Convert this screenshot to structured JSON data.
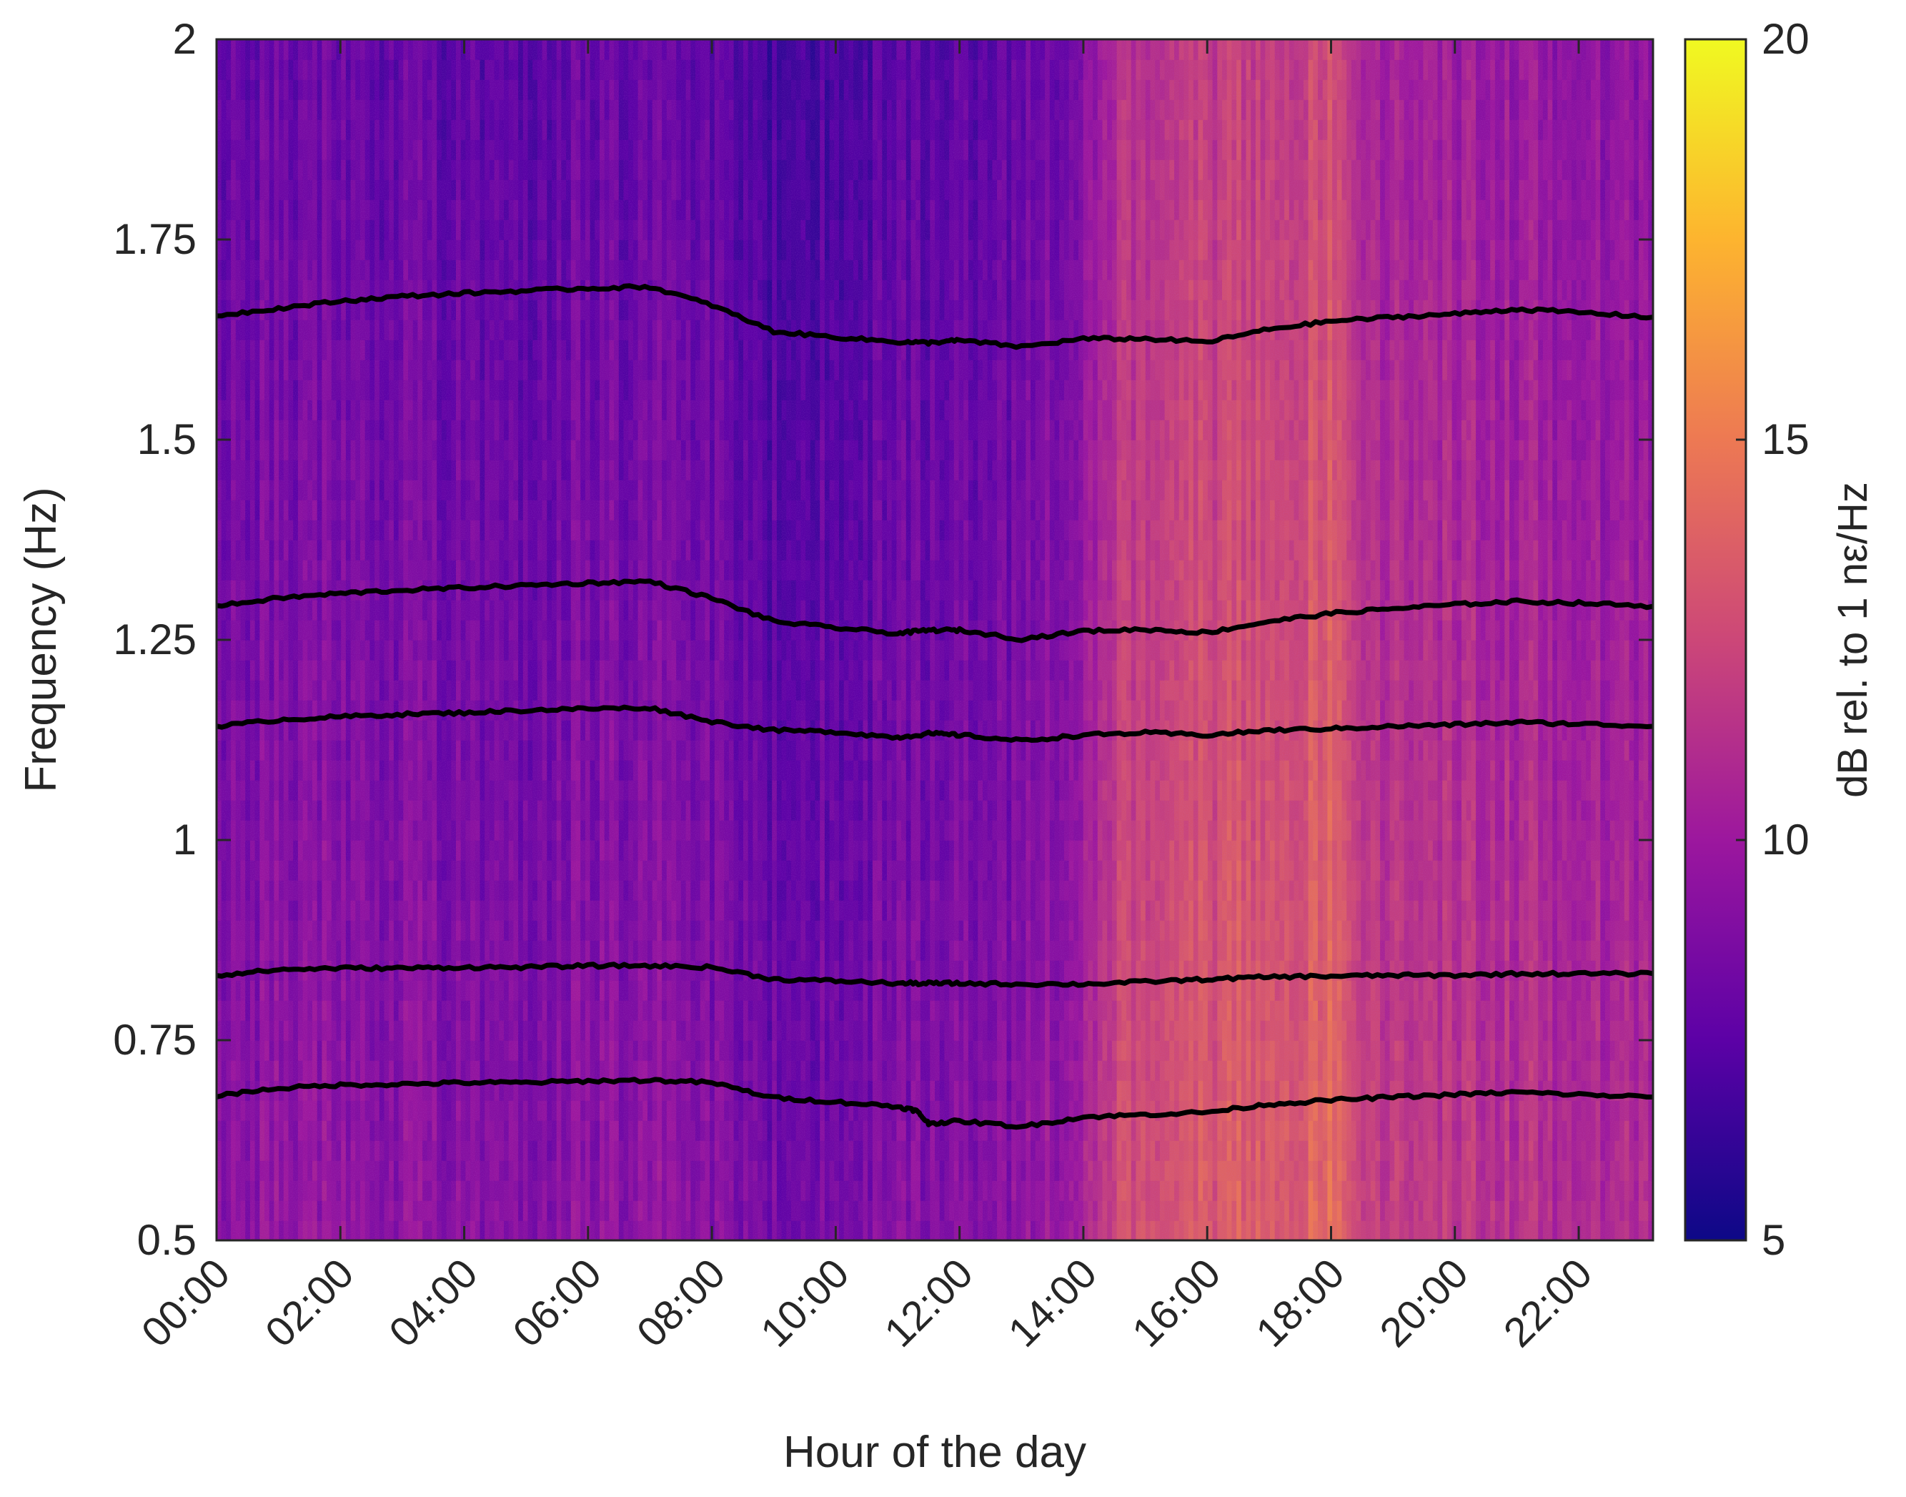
{
  "chart_data": {
    "type": "heatmap",
    "title": "",
    "xlabel": "Hour of the day",
    "ylabel": "Frequency (Hz)",
    "xlim": [
      0,
      23.2
    ],
    "ylim": [
      0.5,
      2
    ],
    "xticks": [
      {
        "value": 0,
        "label": "00:00"
      },
      {
        "value": 2,
        "label": "02:00"
      },
      {
        "value": 4,
        "label": "04:00"
      },
      {
        "value": 6,
        "label": "06:00"
      },
      {
        "value": 8,
        "label": "08:00"
      },
      {
        "value": 10,
        "label": "10:00"
      },
      {
        "value": 12,
        "label": "12:00"
      },
      {
        "value": 14,
        "label": "14:00"
      },
      {
        "value": 16,
        "label": "16:00"
      },
      {
        "value": 18,
        "label": "18:00"
      },
      {
        "value": 20,
        "label": "20:00"
      },
      {
        "value": 22,
        "label": "22:00"
      }
    ],
    "yticks": [
      {
        "value": 0.5,
        "label": "0.5"
      },
      {
        "value": 0.75,
        "label": "0.75"
      },
      {
        "value": 1,
        "label": "1"
      },
      {
        "value": 1.25,
        "label": "1.25"
      },
      {
        "value": 1.5,
        "label": "1.5"
      },
      {
        "value": 1.75,
        "label": "1.75"
      },
      {
        "value": 2,
        "label": "2"
      }
    ],
    "colorbar": {
      "label": "dB rel. to 1 nε/Hz",
      "range": [
        5,
        20
      ],
      "ticks": [
        {
          "value": 5,
          "label": "5"
        },
        {
          "value": 10,
          "label": "10"
        },
        {
          "value": 15,
          "label": "15"
        },
        {
          "value": 20,
          "label": "20"
        }
      ],
      "colormap": [
        "#0d0887",
        "#5c01a6",
        "#9c179e",
        "#cc4778",
        "#ed7953",
        "#fdb42f",
        "#f0f921"
      ]
    },
    "heatmap_level_profile": {
      "description_hours": [
        0,
        1,
        2,
        3,
        4,
        5,
        6,
        7,
        8,
        9,
        10,
        11,
        12,
        13,
        14,
        14.7,
        15,
        16,
        17,
        18,
        18.5,
        19,
        20,
        21,
        22,
        23.2
      ],
      "db_level": [
        8.2,
        8.6,
        8.4,
        8.3,
        8.1,
        8.0,
        8.3,
        8.4,
        8.0,
        7.2,
        7.4,
        7.8,
        8.0,
        8.2,
        9.4,
        11.8,
        12.0,
        12.3,
        12.6,
        13.2,
        11.3,
        10.8,
        10.6,
        10.4,
        10.0,
        9.6
      ]
    },
    "grid": false,
    "legend": "none",
    "tracked_modes": [
      {
        "x": [
          0,
          1,
          2,
          3,
          4,
          5,
          6,
          7,
          8,
          9,
          10,
          11,
          11.5,
          12,
          13,
          14,
          15,
          16,
          17,
          18,
          19,
          20,
          21,
          22,
          23.2
        ],
        "y": [
          1.655,
          1.664,
          1.673,
          1.679,
          1.683,
          1.686,
          1.689,
          1.691,
          1.668,
          1.635,
          1.628,
          1.622,
          1.621,
          1.624,
          1.616,
          1.626,
          1.626,
          1.622,
          1.638,
          1.648,
          1.653,
          1.657,
          1.663,
          1.659,
          1.653
        ]
      },
      {
        "x": [
          0,
          1,
          2,
          3,
          4,
          5,
          6,
          7,
          8,
          9,
          10,
          11,
          11.5,
          12,
          13,
          14,
          15,
          16,
          17,
          18,
          19,
          20,
          21,
          22,
          23.2
        ],
        "y": [
          1.292,
          1.302,
          1.308,
          1.312,
          1.315,
          1.318,
          1.321,
          1.323,
          1.302,
          1.273,
          1.265,
          1.258,
          1.262,
          1.262,
          1.251,
          1.261,
          1.263,
          1.259,
          1.273,
          1.283,
          1.289,
          1.294,
          1.298,
          1.296,
          1.292
        ]
      },
      {
        "x": [
          0,
          1,
          2,
          3,
          4,
          5,
          6,
          7,
          8,
          9,
          10,
          11,
          11.5,
          12,
          13,
          14,
          15,
          16,
          17,
          18,
          19,
          20,
          21,
          22,
          23.2
        ],
        "y": [
          1.142,
          1.15,
          1.154,
          1.157,
          1.159,
          1.162,
          1.164,
          1.165,
          1.148,
          1.137,
          1.135,
          1.128,
          1.133,
          1.131,
          1.124,
          1.131,
          1.134,
          1.131,
          1.137,
          1.139,
          1.142,
          1.144,
          1.147,
          1.145,
          1.142
        ]
      },
      {
        "x": [
          0,
          1,
          2,
          3,
          4,
          5,
          6,
          7,
          8,
          9,
          10,
          11,
          11.5,
          12,
          13,
          14,
          15,
          16,
          17,
          18,
          19,
          20,
          21,
          22,
          23.2
        ],
        "y": [
          0.831,
          0.838,
          0.84,
          0.84,
          0.841,
          0.841,
          0.843,
          0.843,
          0.841,
          0.826,
          0.824,
          0.821,
          0.821,
          0.821,
          0.82,
          0.82,
          0.823,
          0.826,
          0.829,
          0.83,
          0.831,
          0.831,
          0.833,
          0.833,
          0.833
        ]
      },
      {
        "x": [
          0,
          1,
          2,
          3,
          4,
          5,
          6,
          7,
          8,
          9,
          10,
          11,
          11.3,
          11.5,
          12,
          13,
          14,
          15,
          16,
          17,
          18,
          19,
          20,
          21,
          22,
          23.2
        ],
        "y": [
          0.681,
          0.69,
          0.694,
          0.695,
          0.697,
          0.697,
          0.699,
          0.7,
          0.697,
          0.678,
          0.673,
          0.667,
          0.662,
          0.646,
          0.649,
          0.642,
          0.654,
          0.657,
          0.66,
          0.67,
          0.675,
          0.679,
          0.682,
          0.685,
          0.682,
          0.679
        ]
      }
    ]
  }
}
